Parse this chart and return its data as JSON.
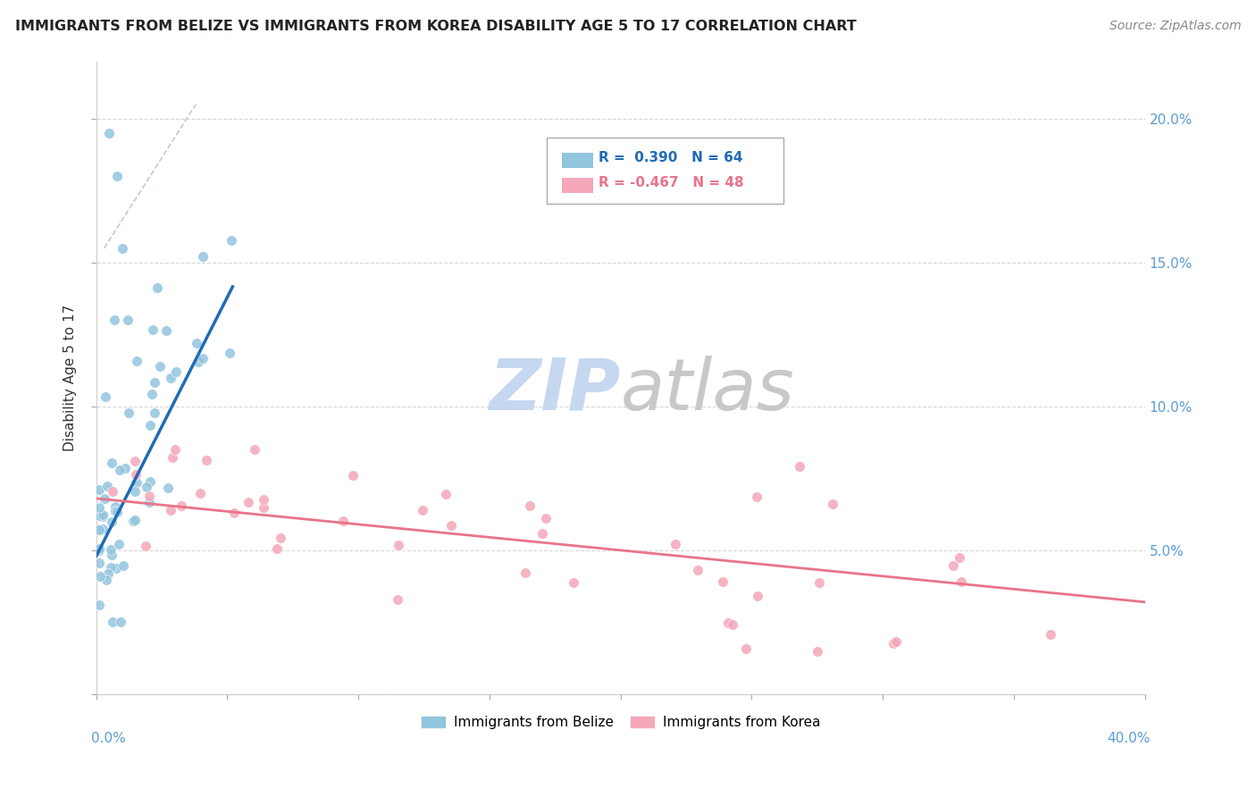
{
  "title": "IMMIGRANTS FROM BELIZE VS IMMIGRANTS FROM KOREA DISABILITY AGE 5 TO 17 CORRELATION CHART",
  "source": "Source: ZipAtlas.com",
  "ylabel": "Disability Age 5 to 17",
  "xlim": [
    0.0,
    0.4
  ],
  "ylim": [
    0.0,
    0.22
  ],
  "legend_r1": "R =  0.390",
  "legend_n1": "N = 64",
  "legend_r2": "R = -0.467",
  "legend_n2": "N = 48",
  "belize_color": "#92c5de",
  "korea_color": "#f4a7b9",
  "belize_line_color": "#1f6bb5",
  "korea_line_color": "#e8748a",
  "dash_color": "#b0c8d8",
  "right_label_color": "#5b9bd5",
  "watermark_zip_color": "#c5d8ef",
  "watermark_atlas_color": "#c8c8c8"
}
